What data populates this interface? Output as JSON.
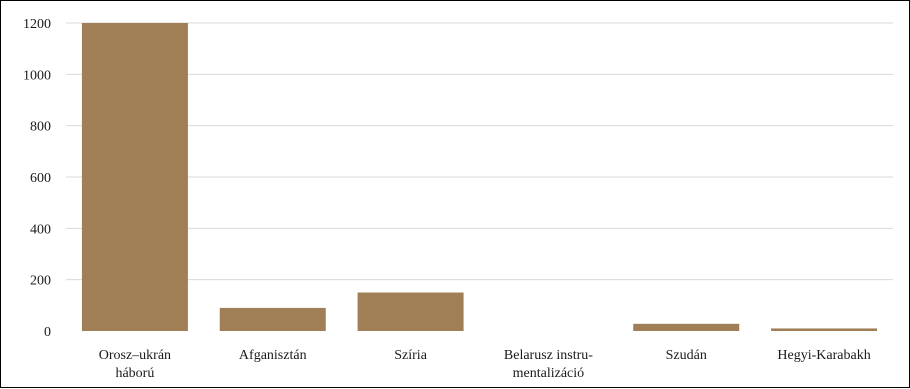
{
  "chart_data": {
    "type": "bar",
    "categories": [
      [
        "Orosz–ukrán",
        "háború"
      ],
      [
        "Afganisztán"
      ],
      [
        "Szíria"
      ],
      [
        "Belarusz instru-",
        "mentalizáció"
      ],
      [
        "Szudán"
      ],
      [
        "Hegyi-Karabakh"
      ]
    ],
    "values": [
      1200,
      90,
      150,
      0,
      28,
      10
    ],
    "title": "",
    "xlabel": "",
    "ylabel": "",
    "ylim": [
      0,
      1200
    ],
    "yticks": [
      "0",
      "200",
      "400",
      "600",
      "800",
      "1000",
      "1200"
    ],
    "grid": true,
    "legend": "none",
    "bar_color": "#a07f56",
    "grid_color": "#d9d9d9"
  }
}
